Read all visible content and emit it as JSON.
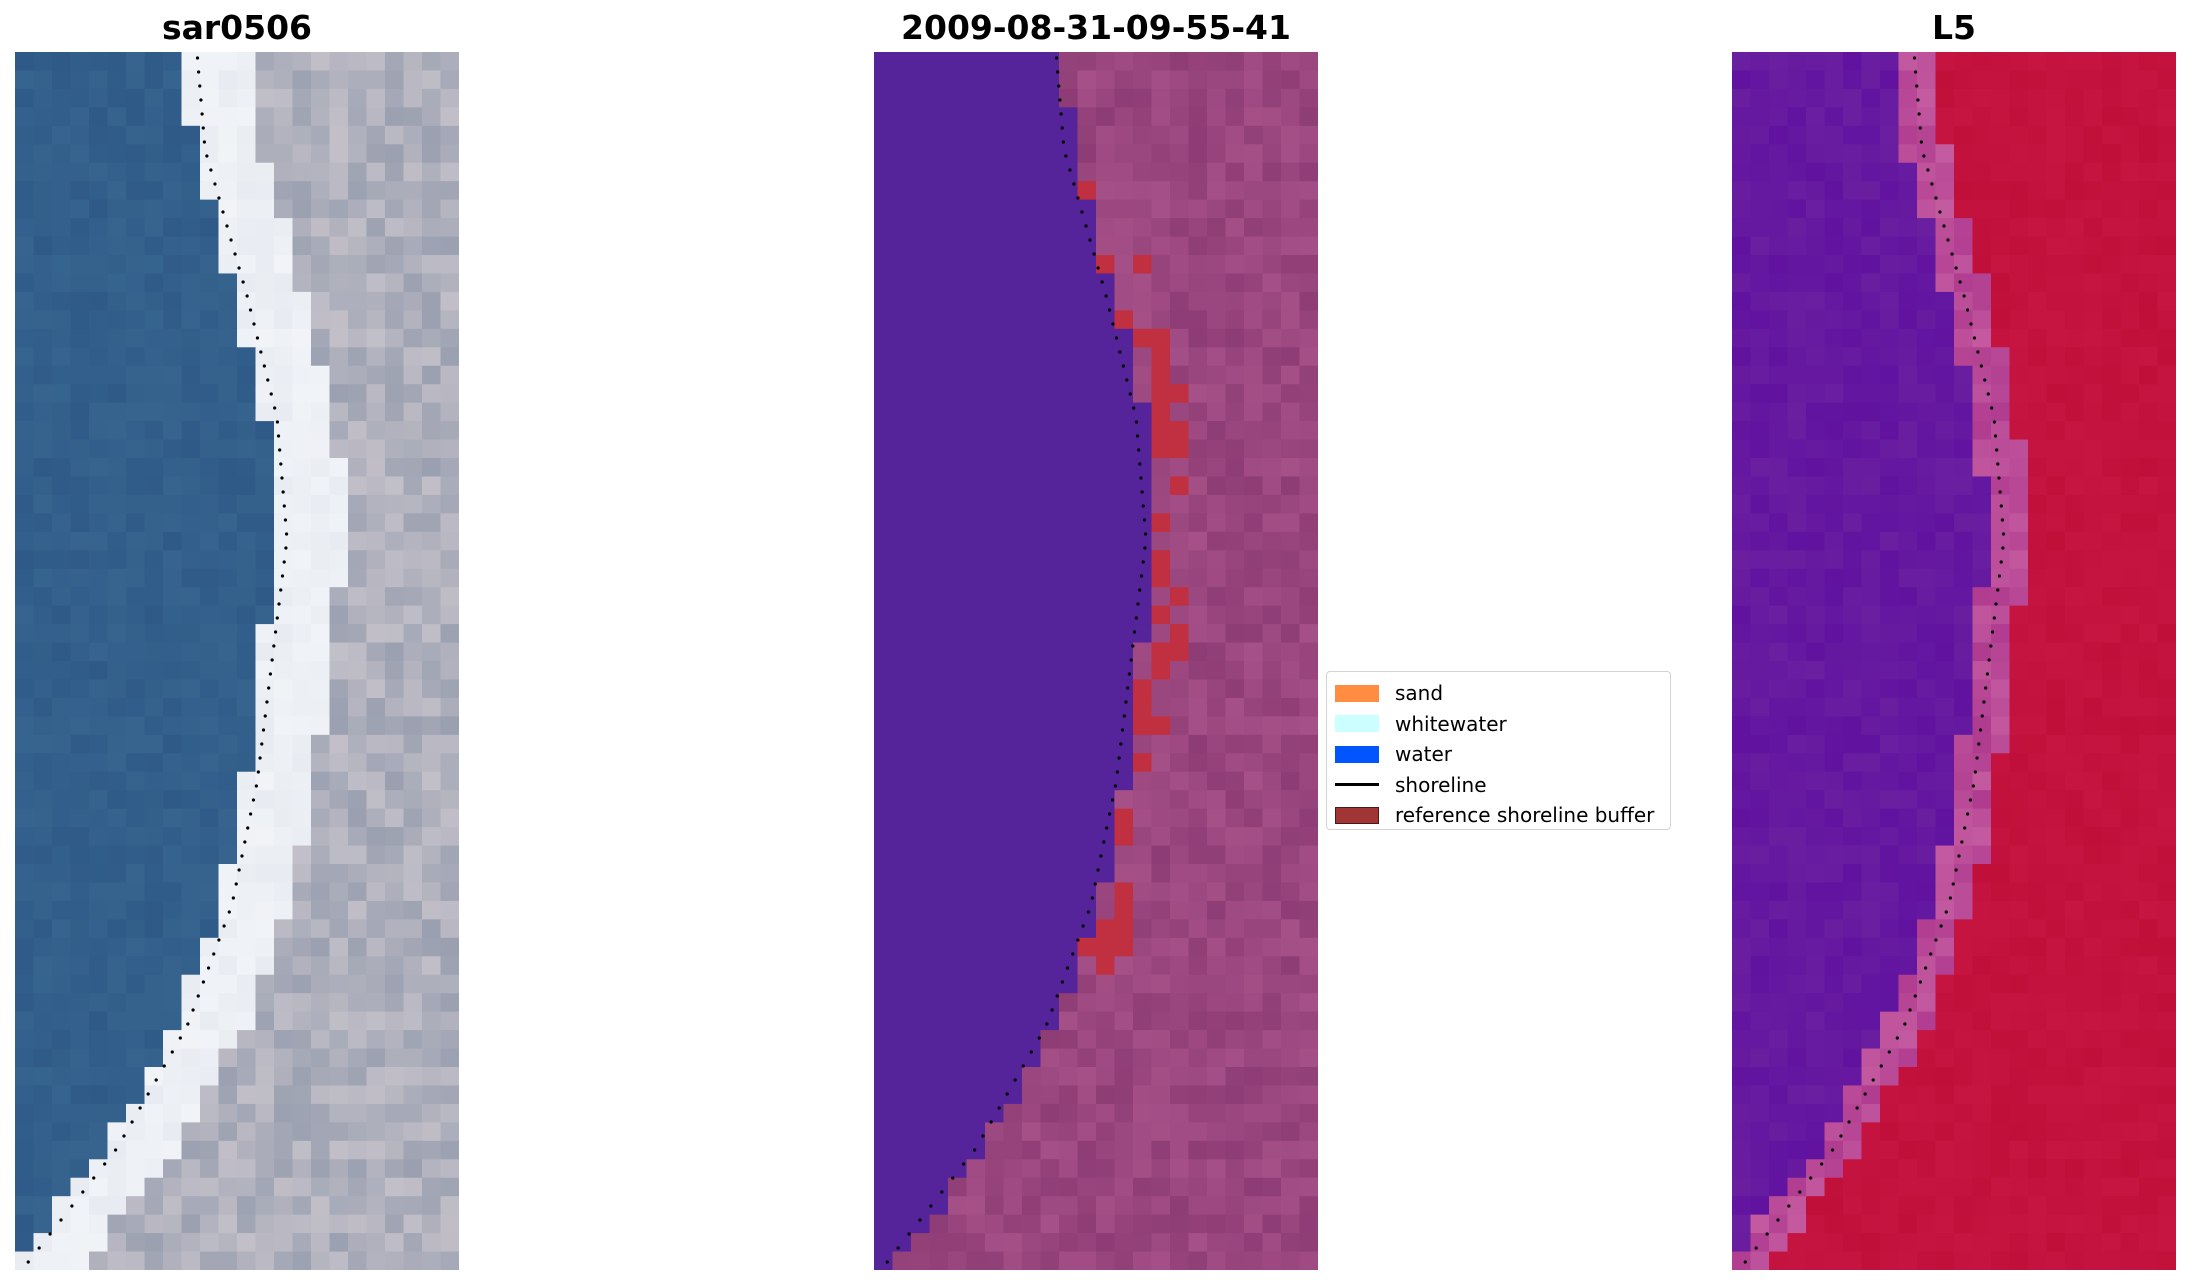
{
  "panels": [
    {
      "title": "sar0506",
      "type": "rgb"
    },
    {
      "title": "2009-08-31-09-55-41",
      "type": "classified"
    },
    {
      "title": "L5",
      "type": "index"
    }
  ],
  "legend": {
    "items": [
      {
        "label": "sand",
        "color": "#ff8c40",
        "kind": "patch"
      },
      {
        "label": "whitewater",
        "color": "#ccffff",
        "kind": "patch"
      },
      {
        "label": "water",
        "color": "#0055ff",
        "kind": "patch"
      },
      {
        "label": "shoreline",
        "color": "#000000",
        "kind": "line"
      },
      {
        "label": "reference shoreline buffer",
        "color": "#a03535",
        "kind": "patch"
      }
    ]
  },
  "colors": {
    "water_rgb": "#2f5a88",
    "beach_rgb": "#e8ecf2",
    "land_rgb": "#9aa0b0",
    "classified_water": "#55239a",
    "classified_land": "#a65088",
    "buffer": "#c03040",
    "index_low": "#6a1fa0",
    "index_high": "#c0103a",
    "shoreline": "#000000"
  }
}
